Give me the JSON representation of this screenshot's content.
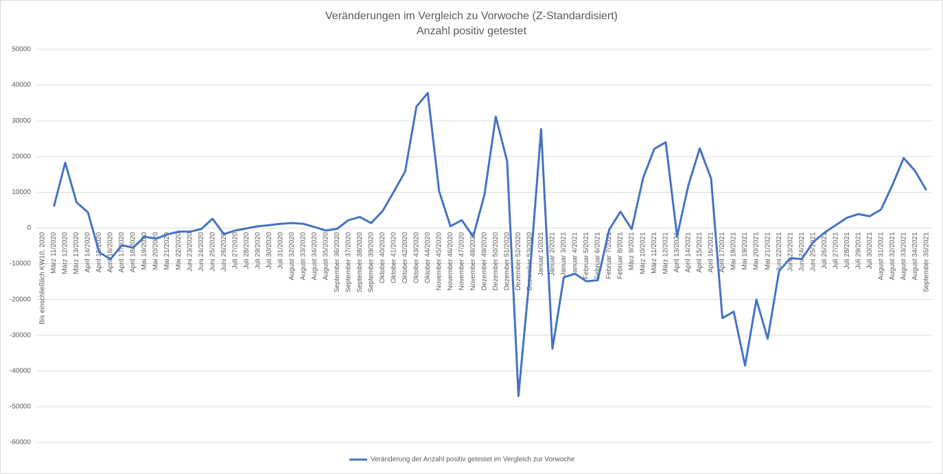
{
  "chart_data": {
    "type": "line",
    "title": "Veränderungen im Vergleich zu Vorwoche (Z-Standardisiert)",
    "subtitle": "Anzahl positiv getestet",
    "categories": [
      "Bis einschließlich KW10, 2020",
      "März 11/2020",
      "März 12/2020",
      "März 13/2020",
      "April 14/2020",
      "April 15/2020",
      "April 16/2020",
      "April 17/2020",
      "April 18/2020",
      "Mai 19/2020",
      "Mai 20/2020",
      "Mai 21/2020",
      "Mai 22/2020",
      "Juni 23/2020",
      "Juni 24/2020",
      "Juni 25/2020",
      "Juni 26/2020",
      "Juli 27/2020",
      "Juli 28/2020",
      "Juli 29/2020",
      "Juli 30/2020",
      "Juli 31/2020",
      "August 32/2020",
      "August 33/2020",
      "August 34/2020",
      "August 35/2020",
      "September 36/2020",
      "September 37/2020",
      "September 38/2020",
      "September 39/2020",
      "Oktober 40/2020",
      "Oktober 41/2020",
      "Oktober 42/2020",
      "Oktober 43/2020",
      "Oktober 44/2020",
      "November 45/2020",
      "November 46/2020",
      "November 47/2020",
      "November 48/2020",
      "Dezember 49/2020",
      "Dezember 50/2020",
      "Dezember 51/2020",
      "Dezember 52/2020",
      "Dezember 53/2020",
      "Januar 1/2021",
      "Januar 2/2021",
      "Januar 3/2021",
      "Januar 4/2021",
      "Februar 5/2021",
      "Februar 6/2021",
      "Februar 7/2021",
      "Februar 8/2021",
      "März 9/2021",
      "März 10/2021",
      "März 11/2021",
      "März 12/2021",
      "April 13/2021",
      "April 14/2021",
      "April 15/2021",
      "April 16/2021",
      "April 17/2021",
      "Mai 18/2021",
      "Mai 19/2021",
      "Mai 20/2021",
      "Mai 21/2021",
      "Juni 22/2021",
      "Juni 23/2021",
      "Juni 24/2021",
      "Juni 25/2021",
      "Juli 26/2021",
      "Juli 27/2021",
      "Juli 28/2021",
      "Juli 29/2021",
      "Juli 30/2021",
      "August 31/2021",
      "August 32/2021",
      "August 33/2021",
      "August 34/2021",
      "September 35/2021"
    ],
    "series": [
      {
        "name": "Veränderung der Anzahl positiv getestet im Vergleich zur Vorwoche",
        "color": "#4472c4",
        "values": [
          null,
          6000,
          18300,
          7200,
          4400,
          -6800,
          -8700,
          -4800,
          -5500,
          -2400,
          -3000,
          -1800,
          -1000,
          -1000,
          -300,
          2600,
          -1700,
          -700,
          -100,
          500,
          800,
          1200,
          1400,
          1200,
          300,
          -700,
          -200,
          2200,
          3100,
          1400,
          4700,
          10200,
          15800,
          34000,
          37800,
          10300,
          500,
          2200,
          -2400,
          9300,
          31200,
          18700,
          -47000,
          -13000,
          27700,
          -33800,
          -13800,
          -12800,
          -14900,
          -14600,
          -500,
          4600,
          -300,
          14000,
          22200,
          24000,
          -2300,
          12000,
          22300,
          13900,
          -25200,
          -23400,
          -38500,
          -20000,
          -31000,
          -12000,
          -8400,
          -8700,
          -4000,
          -1300,
          800,
          2900,
          3900,
          3300,
          5200,
          12000,
          19600,
          16000,
          10600
        ]
      }
    ],
    "ylim": [
      -60000,
      50000
    ],
    "yticks": [
      -60000,
      -50000,
      -40000,
      -30000,
      -20000,
      -10000,
      0,
      10000,
      20000,
      30000,
      40000,
      50000
    ],
    "grid": true,
    "legend": "bottom"
  }
}
